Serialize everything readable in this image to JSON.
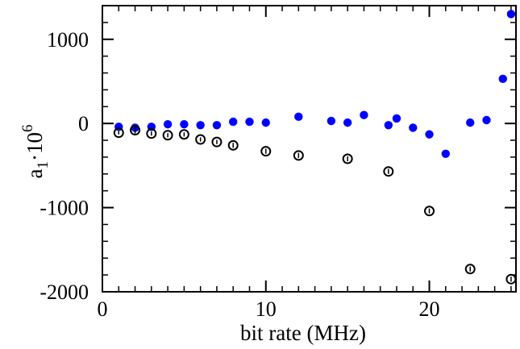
{
  "chart_data": {
    "type": "scatter",
    "title": "",
    "xlabel": "bit rate (MHz)",
    "ylabel_main": "a",
    "ylabel_sub": "1",
    "ylabel_rest": "·10",
    "ylabel_sup": "6",
    "xlim": [
      0,
      25.3
    ],
    "ylim": [
      -2000,
      1400
    ],
    "x_ticks": [
      0,
      10,
      20
    ],
    "x_tick_labels": [
      "0",
      "10",
      "20"
    ],
    "y_ticks": [
      -2000,
      -1000,
      0,
      1000
    ],
    "y_tick_labels": [
      "-2000",
      "-1000",
      "0",
      "1000"
    ],
    "x_minor_step": 1,
    "y_minor_step": 200,
    "grid": false,
    "series": [
      {
        "marker": "filled-circle",
        "color": "#0000ff",
        "x": [
          1,
          2,
          3,
          4,
          5,
          6,
          7,
          8,
          9,
          10,
          12,
          14,
          15,
          16,
          17.5,
          18,
          19,
          20,
          21,
          22.5,
          23.5,
          24.5,
          25
        ],
        "y": [
          -40,
          -50,
          -40,
          -10,
          -10,
          -20,
          -20,
          20,
          20,
          10,
          80,
          30,
          10,
          100,
          -20,
          60,
          -50,
          -130,
          -360,
          10,
          40,
          530,
          1300
        ]
      },
      {
        "marker": "open-circle",
        "color": "#000000",
        "x": [
          1,
          2,
          3,
          4,
          5,
          6,
          7,
          8,
          10,
          12,
          15,
          17.5,
          20,
          22.5,
          25
        ],
        "y": [
          -110,
          -80,
          -120,
          -140,
          -130,
          -190,
          -220,
          -260,
          -330,
          -380,
          -420,
          -570,
          -1040,
          -1730,
          -1850
        ],
        "error": [
          20,
          40,
          25,
          25,
          25,
          25,
          25,
          30,
          30,
          30,
          30,
          30,
          30,
          30,
          30
        ]
      }
    ]
  }
}
